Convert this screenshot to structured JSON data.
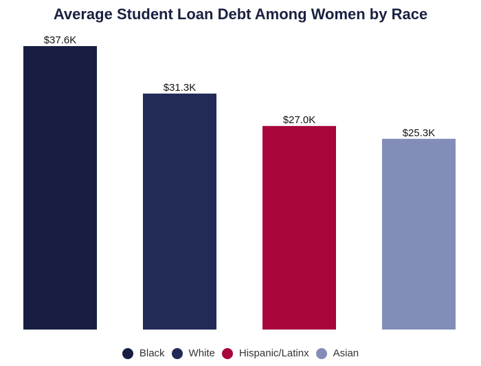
{
  "chart_data": {
    "type": "bar",
    "title": "Average Student Loan Debt Among Women by Race",
    "xlabel": "",
    "ylabel": "",
    "categories": [
      "Black",
      "White",
      "Hispanic/Latinx",
      "Asian"
    ],
    "values": [
      37.6,
      31.3,
      27.0,
      25.3
    ],
    "data_labels": [
      "$37.6K",
      "$31.3K",
      "$27.0K",
      "$25.3K"
    ],
    "colors": [
      "#171e42",
      "#222a58",
      "#a8053b",
      "#828db8"
    ],
    "ylim": [
      0,
      37.6
    ],
    "grid": false,
    "legend_position": "bottom-center",
    "legend": [
      {
        "label": "Black",
        "color": "#171e42"
      },
      {
        "label": "White",
        "color": "#222a58"
      },
      {
        "label": "Hispanic/Latinx",
        "color": "#a8053b"
      },
      {
        "label": "Asian",
        "color": "#828db8"
      }
    ]
  }
}
